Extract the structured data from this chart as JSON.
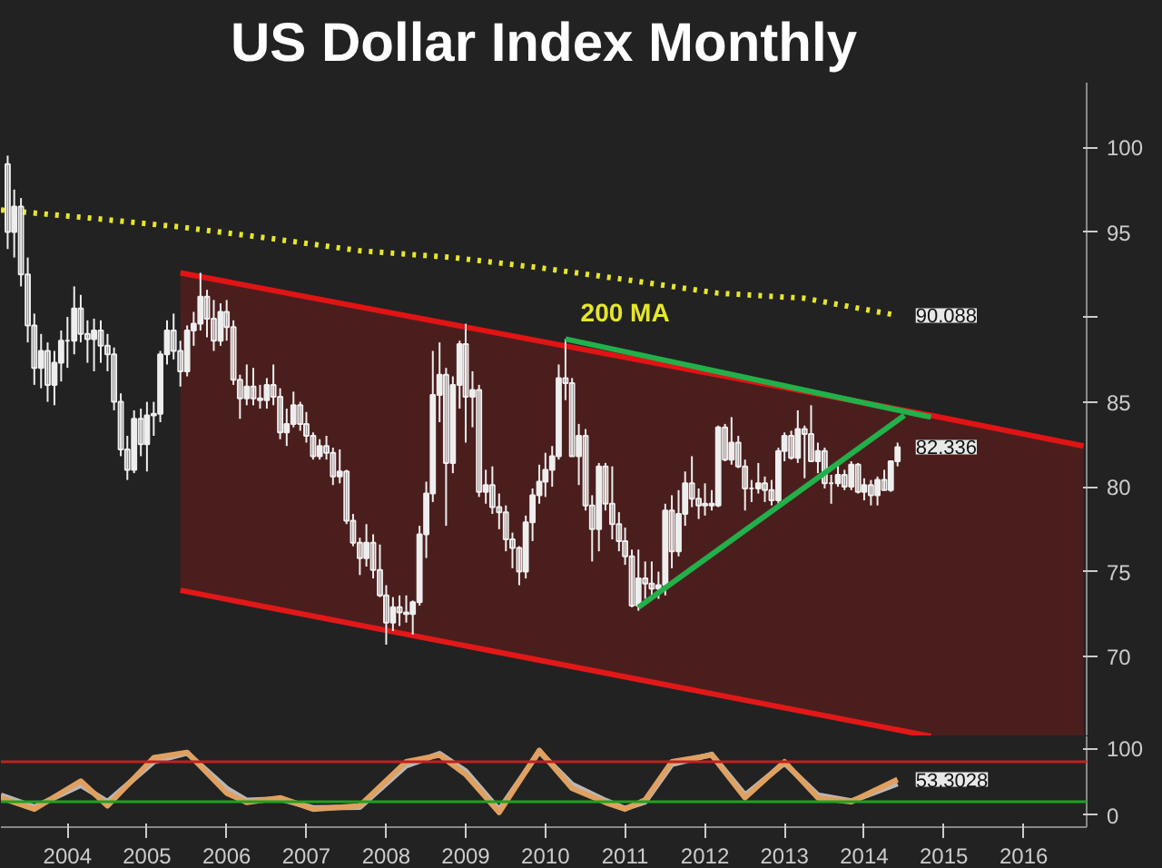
{
  "chart_data": [
    {
      "type": "candlestick",
      "title": "US Dollar Index Monthly",
      "xlim": [
        "2003-05-01",
        "2016-12-15"
      ],
      "ylim": [
        65.3,
        103.8
      ],
      "yticks": [
        70,
        75,
        80,
        85,
        {
          "value": 90,
          "label": null
        },
        95,
        100
      ],
      "tick_labels": "y",
      "annotations": [
        {
          "text": "90.088",
          "x": "2014-08",
          "y": 90.088
        },
        {
          "text": "82.336",
          "x": "2014-08",
          "y": 82.336
        }
      ],
      "series": [
        {
          "type": "line",
          "color": "#e01414",
          "x": [
            "2005-08",
            "2015-01",
            "2016-12"
          ],
          "values": [
            92.6,
            84.2,
            82.4
          ],
          "upper": [
            92.6,
            84.2,
            82.4
          ],
          "lower": [
            73.9,
            65.3,
            65.3
          ]
        },
        {
          "type": "line",
          "color": "#e21818",
          "x": [
            "2005-08",
            "2015-01"
          ],
          "values": [
            73.9,
            65.3
          ]
        },
        {
          "type": "line",
          "name": "200 MA",
          "color": "#e6e62a",
          "line_style": "dotted",
          "x": [
            "2003-05",
            "2004-07",
            "2005-08",
            "2006-10",
            "2007-11",
            "2009-01",
            "2010-02",
            "2011-03",
            "2012-05",
            "2013-06",
            "2014-08"
          ],
          "values": [
            96.3,
            95.8,
            95.3,
            94.6,
            93.9,
            93.5,
            92.9,
            92.2,
            91.4,
            91.1,
            90.088
          ]
        },
        {
          "type": "candlestick",
          "color": "#eeeeee",
          "x": [
            "2003-06",
            "2003-07",
            "2003-08",
            "2003-09",
            "2003-10",
            "2003-11",
            "2003-12",
            "2004-01",
            "2004-02",
            "2004-03",
            "2004-04",
            "2004-05",
            "2004-06",
            "2004-07",
            "2004-08",
            "2004-09",
            "2004-10",
            "2004-11",
            "2004-12",
            "2005-01",
            "2005-02",
            "2005-03",
            "2005-04",
            "2005-05",
            "2005-06",
            "2005-07",
            "2005-08",
            "2005-09",
            "2005-10",
            "2005-11",
            "2005-12",
            "2006-01",
            "2006-02",
            "2006-03",
            "2006-04",
            "2006-05",
            "2006-06",
            "2006-07",
            "2006-08",
            "2006-09",
            "2006-10",
            "2006-11",
            "2006-12",
            "2007-01",
            "2007-02",
            "2007-03",
            "2007-04",
            "2007-05",
            "2007-06",
            "2007-07",
            "2007-08",
            "2007-09",
            "2007-10",
            "2007-11",
            "2007-12",
            "2008-01",
            "2008-02",
            "2008-03",
            "2008-04",
            "2008-05",
            "2008-06",
            "2008-07",
            "2008-08",
            "2008-09",
            "2008-10",
            "2008-11",
            "2008-12",
            "2009-01",
            "2009-02",
            "2009-03",
            "2009-04",
            "2009-05",
            "2009-06",
            "2009-07",
            "2009-08",
            "2009-09",
            "2009-10",
            "2009-11",
            "2009-12",
            "2010-01",
            "2010-02",
            "2010-03",
            "2010-04",
            "2010-05",
            "2010-06",
            "2010-07",
            "2010-08",
            "2010-09",
            "2010-10",
            "2010-11",
            "2010-12",
            "2011-01",
            "2011-02",
            "2011-03",
            "2011-04",
            "2011-05",
            "2011-06",
            "2011-07",
            "2011-08",
            "2011-09",
            "2011-10",
            "2011-11",
            "2011-12",
            "2012-01",
            "2012-02",
            "2012-03",
            "2012-04",
            "2012-05",
            "2012-06",
            "2012-07",
            "2012-08",
            "2012-09",
            "2012-10",
            "2012-11",
            "2012-12",
            "2013-01",
            "2013-02",
            "2013-03",
            "2013-04",
            "2013-05",
            "2013-06",
            "2013-07",
            "2013-08",
            "2013-09",
            "2013-10",
            "2013-11",
            "2013-12",
            "2014-01",
            "2014-02",
            "2014-03",
            "2014-04",
            "2014-05",
            "2014-06",
            "2014-07",
            "2014-08"
          ],
          "ohlc": [
            [
              99.0,
              99.5,
              94.0,
              95.0
            ],
            [
              95.0,
              97.5,
              93.5,
              96.5
            ],
            [
              96.5,
              97.0,
              91.8,
              92.5
            ],
            [
              92.5,
              93.5,
              88.5,
              89.5
            ],
            [
              89.5,
              90.2,
              86.0,
              87.0
            ],
            [
              87.0,
              89.0,
              85.8,
              88.0
            ],
            [
              88.0,
              88.5,
              85.0,
              86.0
            ],
            [
              86.0,
              88.0,
              84.8,
              87.3
            ],
            [
              87.3,
              89.2,
              86.2,
              88.6
            ],
            [
              88.6,
              90.0,
              87.0,
              88.6
            ],
            [
              88.6,
              91.8,
              87.8,
              90.5
            ],
            [
              90.5,
              91.3,
              88.5,
              89.0
            ],
            [
              89.0,
              89.8,
              87.3,
              88.7
            ],
            [
              88.7,
              89.9,
              86.8,
              89.2
            ],
            [
              89.2,
              89.8,
              87.3,
              88.3
            ],
            [
              88.3,
              89.0,
              86.8,
              87.8
            ],
            [
              87.8,
              88.2,
              84.5,
              85.0
            ],
            [
              85.0,
              85.5,
              81.8,
              82.2
            ],
            [
              82.2,
              83.0,
              80.4,
              81.0
            ],
            [
              81.0,
              84.5,
              80.8,
              84.0
            ],
            [
              84.0,
              84.6,
              81.8,
              82.5
            ],
            [
              82.5,
              85.0,
              80.9,
              84.2
            ],
            [
              84.2,
              85.0,
              83.0,
              84.3
            ],
            [
              84.3,
              88.0,
              83.8,
              87.8
            ],
            [
              87.8,
              89.8,
              87.2,
              89.2
            ],
            [
              89.2,
              90.2,
              87.5,
              88.0
            ],
            [
              88.0,
              88.6,
              85.9,
              86.8
            ],
            [
              86.8,
              89.5,
              86.5,
              89.2
            ],
            [
              89.2,
              90.3,
              88.3,
              89.6
            ],
            [
              89.6,
              92.6,
              89.2,
              91.2
            ],
            [
              91.2,
              91.6,
              88.8,
              89.9
            ],
            [
              89.9,
              91.0,
              88.0,
              88.6
            ],
            [
              88.6,
              90.8,
              88.3,
              90.3
            ],
            [
              90.3,
              91.0,
              88.6,
              89.4
            ],
            [
              89.4,
              89.8,
              86.0,
              86.3
            ],
            [
              86.3,
              86.6,
              84.0,
              85.2
            ],
            [
              85.2,
              87.2,
              84.8,
              85.9
            ],
            [
              85.9,
              87.0,
              84.8,
              85.2
            ],
            [
              85.2,
              86.0,
              84.6,
              85.1
            ],
            [
              85.1,
              86.4,
              84.6,
              86.0
            ],
            [
              86.0,
              87.2,
              84.8,
              85.3
            ],
            [
              85.3,
              85.8,
              82.8,
              83.2
            ],
            [
              83.2,
              84.6,
              82.4,
              83.7
            ],
            [
              83.7,
              85.6,
              83.5,
              84.8
            ],
            [
              84.8,
              85.0,
              83.3,
              83.7
            ],
            [
              83.7,
              84.4,
              82.6,
              83.0
            ],
            [
              83.0,
              83.2,
              81.6,
              81.8
            ],
            [
              81.8,
              82.8,
              81.6,
              82.4
            ],
            [
              82.4,
              83.0,
              81.6,
              82.0
            ],
            [
              82.0,
              82.3,
              80.1,
              80.6
            ],
            [
              80.6,
              82.2,
              80.2,
              80.9
            ],
            [
              80.9,
              81.0,
              77.8,
              78.0
            ],
            [
              78.0,
              78.4,
              76.5,
              76.7
            ],
            [
              76.7,
              77.0,
              74.8,
              75.8
            ],
            [
              75.8,
              77.8,
              75.3,
              76.7
            ],
            [
              76.7,
              77.2,
              74.6,
              75.1
            ],
            [
              75.1,
              76.6,
              73.5,
              73.6
            ],
            [
              73.6,
              74.2,
              70.7,
              72.0
            ],
            [
              72.0,
              73.5,
              71.5,
              72.9
            ],
            [
              72.9,
              73.6,
              71.8,
              72.6
            ],
            [
              72.6,
              73.6,
              72.0,
              72.5
            ],
            [
              72.5,
              73.3,
              71.3,
              73.2
            ],
            [
              73.2,
              77.7,
              73.0,
              77.2
            ],
            [
              77.2,
              80.3,
              75.8,
              79.6
            ],
            [
              79.6,
              88.0,
              79.1,
              85.4
            ],
            [
              85.4,
              88.5,
              83.8,
              86.6
            ],
            [
              86.6,
              87.0,
              77.7,
              81.4
            ],
            [
              81.4,
              86.5,
              80.8,
              86.0
            ],
            [
              86.0,
              88.6,
              84.6,
              88.4
            ],
            [
              88.4,
              89.6,
              82.6,
              85.3
            ],
            [
              85.3,
              86.8,
              83.5,
              85.7
            ],
            [
              85.7,
              86.0,
              79.4,
              79.7
            ],
            [
              79.7,
              81.0,
              79.0,
              80.1
            ],
            [
              80.1,
              81.2,
              78.4,
              78.8
            ],
            [
              78.8,
              79.6,
              77.5,
              78.5
            ],
            [
              78.5,
              78.9,
              76.2,
              76.9
            ],
            [
              76.9,
              77.3,
              75.2,
              76.4
            ],
            [
              76.4,
              76.5,
              74.2,
              75.0
            ],
            [
              75.0,
              78.3,
              74.6,
              77.9
            ],
            [
              77.9,
              79.9,
              76.8,
              79.5
            ],
            [
              79.5,
              81.3,
              79.0,
              80.3
            ],
            [
              80.3,
              82.0,
              79.4,
              81.0
            ],
            [
              81.0,
              82.4,
              80.0,
              81.8
            ],
            [
              81.8,
              87.2,
              81.6,
              86.4
            ],
            [
              86.4,
              88.7,
              85.1,
              86.1
            ],
            [
              86.1,
              86.4,
              81.8,
              81.8
            ],
            [
              81.8,
              83.7,
              80.1,
              83.0
            ],
            [
              83.0,
              83.4,
              78.6,
              78.9
            ],
            [
              78.9,
              79.5,
              75.6,
              77.5
            ],
            [
              77.5,
              81.4,
              76.2,
              81.2
            ],
            [
              81.2,
              81.4,
              78.6,
              79.0
            ],
            [
              79.0,
              81.2,
              76.9,
              77.8
            ],
            [
              77.8,
              78.5,
              76.2,
              76.8
            ],
            [
              76.8,
              77.6,
              75.4,
              75.9
            ],
            [
              75.9,
              76.3,
              72.9,
              73.0
            ],
            [
              73.0,
              76.3,
              72.7,
              74.6
            ],
            [
              74.6,
              75.6,
              73.4,
              74.3
            ],
            [
              74.3,
              75.6,
              73.4,
              74.0
            ],
            [
              74.0,
              75.0,
              73.4,
              74.2
            ],
            [
              74.2,
              79.0,
              73.6,
              78.6
            ],
            [
              78.6,
              79.5,
              75.2,
              76.2
            ],
            [
              76.2,
              79.8,
              75.9,
              78.4
            ],
            [
              78.4,
              80.9,
              77.7,
              80.2
            ],
            [
              80.2,
              81.8,
              78.8,
              79.3
            ],
            [
              79.3,
              79.9,
              78.1,
              78.9
            ],
            [
              78.9,
              80.2,
              78.3,
              79.0
            ],
            [
              79.0,
              79.8,
              78.6,
              78.9
            ],
            [
              78.9,
              83.6,
              78.8,
              83.5
            ],
            [
              83.5,
              83.7,
              81.5,
              81.6
            ],
            [
              81.6,
              84.1,
              81.3,
              82.6
            ],
            [
              82.6,
              83.0,
              81.1,
              81.2
            ],
            [
              81.2,
              81.6,
              78.6,
              79.9
            ],
            [
              79.9,
              80.4,
              79.1,
              79.9
            ],
            [
              79.9,
              81.4,
              79.6,
              80.2
            ],
            [
              80.2,
              80.6,
              79.1,
              79.8
            ],
            [
              79.8,
              80.4,
              78.9,
              79.2
            ],
            [
              79.2,
              82.3,
              79.0,
              82.1
            ],
            [
              82.1,
              83.2,
              81.5,
              83.0
            ],
            [
              83.0,
              83.3,
              81.6,
              81.7
            ],
            [
              81.7,
              84.5,
              81.4,
              83.4
            ],
            [
              83.4,
              83.6,
              80.5,
              83.1
            ],
            [
              83.1,
              84.8,
              81.5,
              81.5
            ],
            [
              81.5,
              82.6,
              80.8,
              82.1
            ],
            [
              82.1,
              82.3,
              79.9,
              80.2
            ],
            [
              80.2,
              80.7,
              79.0,
              80.2
            ],
            [
              80.2,
              81.5,
              80.0,
              80.7
            ],
            [
              80.7,
              81.0,
              79.8,
              80.0
            ],
            [
              80.0,
              81.5,
              79.8,
              81.3
            ],
            [
              81.3,
              81.4,
              79.6,
              79.7
            ],
            [
              79.7,
              80.5,
              79.2,
              80.1
            ],
            [
              80.1,
              80.4,
              78.9,
              79.5
            ],
            [
              79.5,
              80.6,
              78.9,
              80.4
            ],
            [
              80.4,
              81.0,
              79.8,
              79.8
            ],
            [
              79.8,
              81.5,
              79.7,
              81.5
            ],
            [
              81.5,
              82.6,
              81.2,
              82.336
            ]
          ]
        },
        {
          "type": "line",
          "color": "#22b04a",
          "x": [
            "2010-06",
            "2015-01"
          ],
          "values": [
            88.7,
            84.1
          ]
        },
        {
          "type": "line",
          "color": "#22b04a",
          "x": [
            "2011-05",
            "2014-09"
          ],
          "values": [
            72.9,
            84.2
          ]
        }
      ]
    },
    {
      "type": "line",
      "xlim": [
        "2003-05-01",
        "2016-12-15"
      ],
      "ylim": [
        -18,
        118
      ],
      "yticks": [
        0,
        100
      ],
      "xticks": [
        {
          "value": "2004-03-01",
          "label": "2004"
        },
        {
          "value": "2005-03-01",
          "label": "2005"
        },
        {
          "value": "2006-03-01",
          "label": "2006"
        },
        {
          "value": "2007-03-01",
          "label": "2007"
        },
        {
          "value": "2008-03-01",
          "label": "2008"
        },
        {
          "value": "2009-03-01",
          "label": "2009"
        },
        {
          "value": "2010-03-01",
          "label": "2010"
        },
        {
          "value": "2011-03-01",
          "label": "2011"
        },
        {
          "value": "2012-03-01",
          "label": "2012"
        },
        {
          "value": "2013-03-01",
          "label": "2013"
        },
        {
          "value": "2014-03-01",
          "label": "2014"
        },
        {
          "value": "2015-03-01",
          "label": "2015"
        },
        {
          "value": "2016-03-01",
          "label": "2016"
        }
      ],
      "ref_lines": [
        {
          "axis": "y",
          "value": 80,
          "color": "#c02020"
        },
        {
          "axis": "y",
          "value": 20,
          "color": "#20a020"
        }
      ],
      "annotations": [
        {
          "text": "53.3028",
          "x": "2014-08",
          "y": 53.3028
        }
      ],
      "x": [
        "2003-05",
        "2003-10",
        "2004-05",
        "2004-09",
        "2005-04",
        "2005-09",
        "2006-03",
        "2006-06",
        "2006-11",
        "2007-04",
        "2007-11",
        "2008-06",
        "2008-11",
        "2009-03",
        "2009-08",
        "2010-02",
        "2010-07",
        "2010-12",
        "2011-03",
        "2011-06",
        "2011-10",
        "2012-04",
        "2012-09",
        "2013-03",
        "2013-08",
        "2014-01",
        "2014-08"
      ],
      "series": [
        {
          "color": "#b8b8b8",
          "values": [
            30,
            12,
            45,
            20,
            80,
            93,
            40,
            22,
            24,
            11,
            12,
            74,
            92,
            66,
            8,
            95,
            46,
            22,
            10,
            20,
            76,
            91,
            30,
            78,
            30,
            21,
            47
          ]
        },
        {
          "color": "#e0a060",
          "values": [
            26,
            9,
            51,
            14,
            86,
            94,
            33,
            19,
            26,
            9,
            14,
            80,
            90,
            61,
            4,
            97,
            40,
            19,
            9,
            23,
            80,
            90,
            26,
            80,
            26,
            20,
            53.3028
          ]
        }
      ]
    }
  ]
}
